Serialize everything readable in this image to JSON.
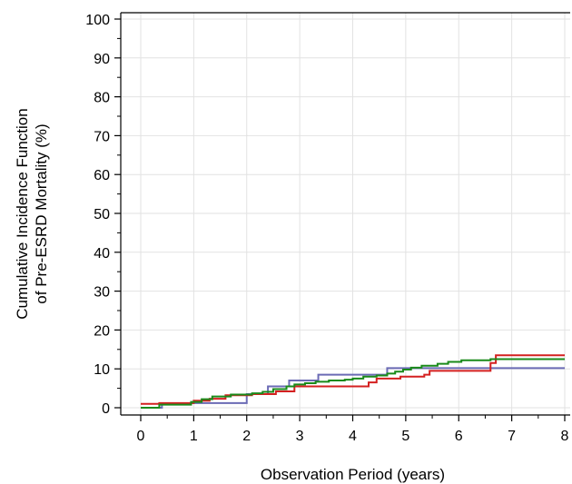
{
  "chart_data": {
    "type": "line",
    "step": true,
    "title": "",
    "xlabel": "Observation Period (years)",
    "ylabel_lines": [
      "Cumulative Incidence Function",
      "of Pre-ESRD Mortality (%)"
    ],
    "xlim": [
      0,
      8
    ],
    "ylim": [
      0,
      100
    ],
    "x_ticks": [
      0,
      1,
      2,
      3,
      4,
      5,
      6,
      7,
      8
    ],
    "y_ticks": [
      0,
      10,
      20,
      30,
      40,
      50,
      60,
      70,
      80,
      90,
      100
    ],
    "grid": true,
    "legend": "none",
    "series": [
      {
        "color": "#6b6bb5",
        "x": [
          0,
          0.4,
          0.95,
          2.0,
          2.4,
          2.8,
          3.35,
          4.65,
          5.1,
          8.0
        ],
        "y": [
          0,
          1.0,
          1.2,
          3.5,
          5.5,
          7.0,
          8.5,
          10.2,
          10.2,
          10.2
        ]
      },
      {
        "color": "#d42020",
        "x": [
          0,
          0.35,
          1.0,
          1.3,
          1.6,
          2.1,
          2.55,
          2.9,
          3.3,
          4.3,
          4.45,
          4.9,
          5.35,
          5.45,
          6.6,
          6.7,
          8.0
        ],
        "y": [
          1.0,
          1.2,
          1.8,
          2.3,
          3.2,
          3.5,
          4.2,
          5.5,
          5.5,
          6.5,
          7.5,
          8.0,
          8.5,
          9.5,
          11.5,
          13.5,
          13.5
        ]
      },
      {
        "color": "#1a8a1a",
        "x": [
          0,
          0.35,
          0.95,
          1.15,
          1.35,
          1.7,
          2.1,
          2.3,
          2.5,
          2.75,
          2.9,
          3.1,
          3.3,
          3.55,
          3.85,
          4.0,
          4.2,
          4.45,
          4.65,
          4.8,
          4.95,
          5.1,
          5.3,
          5.6,
          5.8,
          6.05,
          6.6,
          8.0
        ],
        "y": [
          0,
          0.8,
          1.5,
          2.2,
          2.9,
          3.4,
          3.7,
          4.1,
          4.8,
          5.5,
          6.0,
          6.3,
          6.7,
          7.0,
          7.2,
          7.5,
          8.0,
          8.3,
          8.8,
          9.3,
          9.8,
          10.3,
          10.8,
          11.3,
          11.8,
          12.2,
          12.5,
          12.5
        ]
      }
    ]
  }
}
